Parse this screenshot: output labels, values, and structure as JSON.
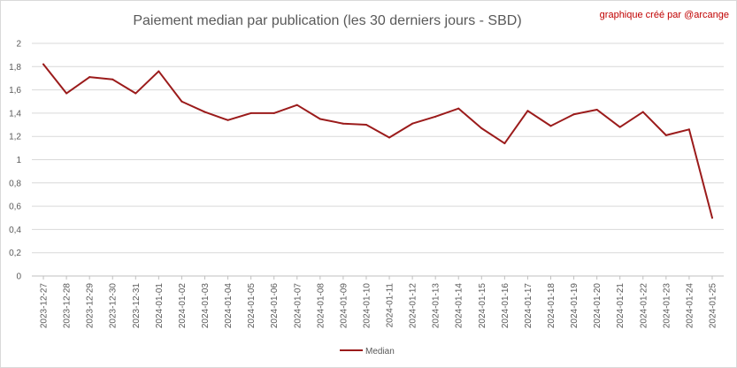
{
  "chart_data": {
    "type": "line",
    "title": "Paiement median par publication (les 30 derniers jours - SBD)",
    "credit": "graphique créé par @arcange",
    "xlabel": "",
    "ylabel": "",
    "ylim": [
      0,
      2
    ],
    "yticks": [
      "0",
      "0,2",
      "0,4",
      "0,6",
      "0,8",
      "1",
      "1,2",
      "1,4",
      "1,6",
      "1,8",
      "2"
    ],
    "grid": true,
    "legend_position": "bottom",
    "categories": [
      "2023-12-27",
      "2023-12-28",
      "2023-12-29",
      "2023-12-30",
      "2023-12-31",
      "2024-01-01",
      "2024-01-02",
      "2024-01-03",
      "2024-01-04",
      "2024-01-05",
      "2024-01-06",
      "2024-01-07",
      "2024-01-08",
      "2024-01-09",
      "2024-01-10",
      "2024-01-11",
      "2024-01-12",
      "2024-01-13",
      "2024-01-14",
      "2024-01-15",
      "2024-01-16",
      "2024-01-17",
      "2024-01-18",
      "2024-01-19",
      "2024-01-20",
      "2024-01-21",
      "2024-01-22",
      "2024-01-23",
      "2024-01-24",
      "2024-01-25"
    ],
    "series": [
      {
        "name": "Median",
        "color": "#9b1b1b",
        "values": [
          1.82,
          1.57,
          1.71,
          1.69,
          1.57,
          1.76,
          1.5,
          1.41,
          1.34,
          1.4,
          1.4,
          1.47,
          1.35,
          1.31,
          1.3,
          1.19,
          1.31,
          1.37,
          1.44,
          1.27,
          1.14,
          1.42,
          1.29,
          1.39,
          1.43,
          1.28,
          1.41,
          1.21,
          1.26,
          0.5
        ]
      }
    ]
  }
}
